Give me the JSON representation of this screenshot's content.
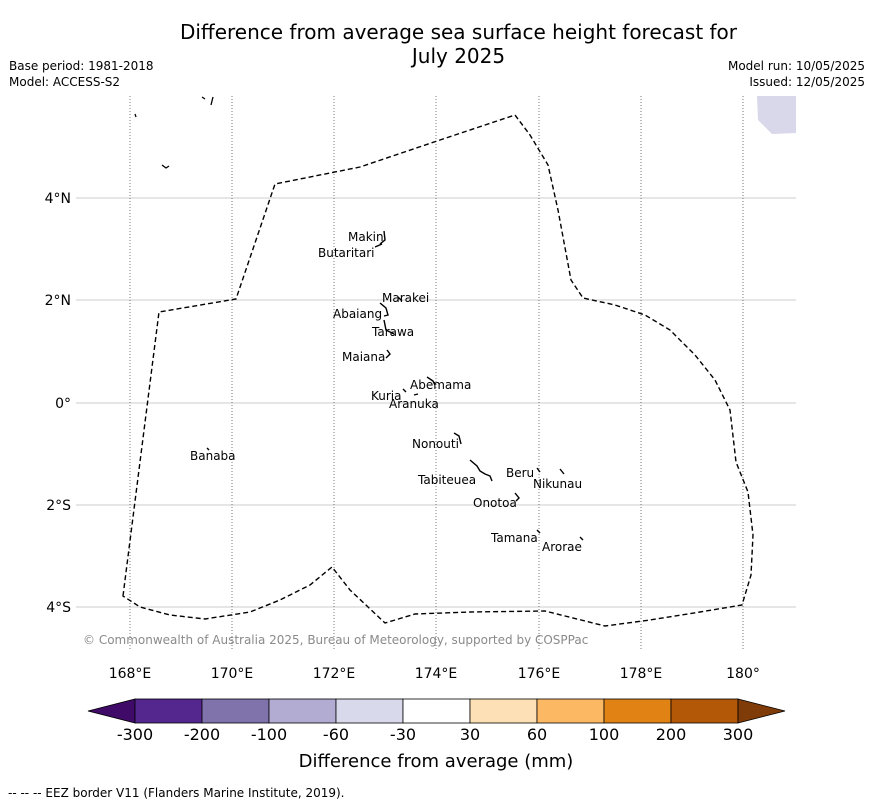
{
  "header": {
    "title_line1": "Difference from average sea surface height forecast for",
    "title_line2": "July 2025",
    "base_period": "Base period: 1981-2018",
    "model": "Model: ACCESS-S2",
    "model_run": "Model run: 10/05/2025",
    "issued": "Issued: 12/05/2025"
  },
  "map": {
    "lon_ticks": [
      "168°E",
      "170°E",
      "172°E",
      "174°E",
      "176°E",
      "178°E",
      "180°"
    ],
    "lat_ticks": [
      "4°N",
      "2°N",
      "0°",
      "2°S",
      "4°S"
    ],
    "places": [
      "Makin",
      "Butaritari",
      "Marakei",
      "Abaiang",
      "Tarawa",
      "Maiana",
      "Abemama",
      "Kuria",
      "Aranuka",
      "Banaba",
      "Nonouti",
      "Beru",
      "Nikunau",
      "Tabiteuea",
      "Onotoa",
      "Tamana",
      "Arorae"
    ],
    "copyright": "© Commonwealth of Australia 2025, Bureau of Meteorology, supported by COSPPac",
    "colors": {
      "eez_line": "#000000",
      "land": "#000000",
      "grid": "#cccccc",
      "shaded_cell": "#d8d8ea"
    }
  },
  "colorbar": {
    "ticks": [
      "-300",
      "-200",
      "-100",
      "-60",
      "-30",
      "30",
      "60",
      "100",
      "200",
      "300"
    ],
    "colors": [
      "#3f0a68",
      "#54278f",
      "#8073ac",
      "#b2abd2",
      "#d8daeb",
      "#ffffff",
      "#fee0b6",
      "#fdb863",
      "#e08214",
      "#b35806",
      "#7f3b08"
    ],
    "label": "Difference from average (mm)"
  },
  "footnote": "--  --  -- EEZ border V11 (Flanders Marine Institute, 2019)."
}
